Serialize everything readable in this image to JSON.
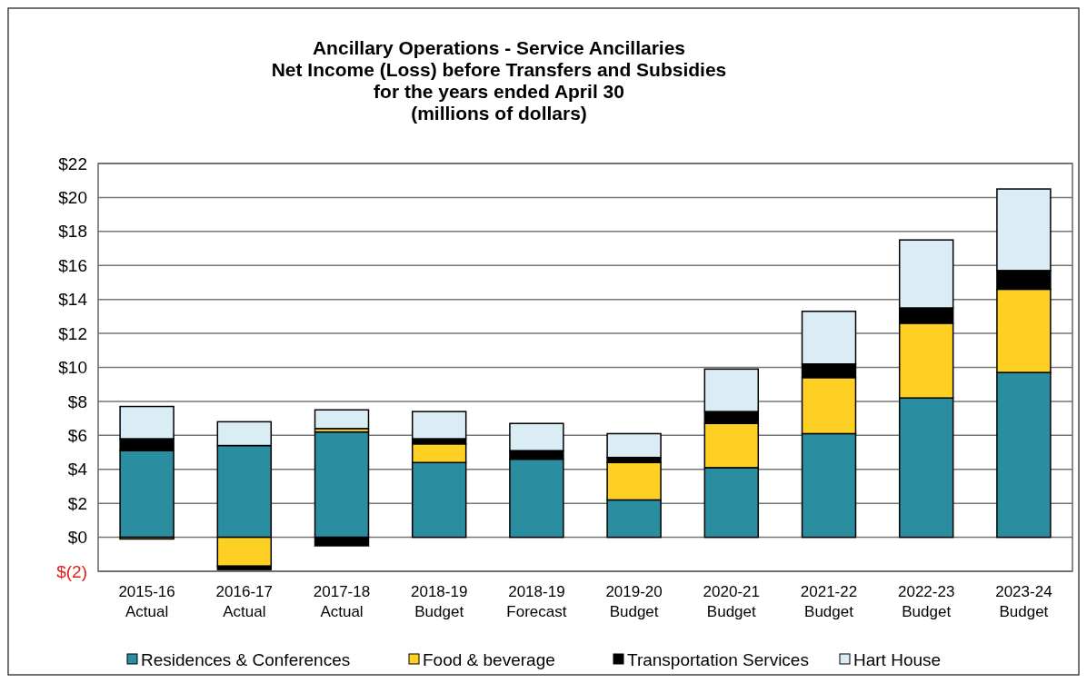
{
  "chart_data": {
    "type": "bar",
    "stacked": true,
    "title": "Ancillary Operations - Service Ancillaries\nNet Income (Loss) before Transfers and Subsidies\nfor the years ended April 30\n(millions of dollars)",
    "categories": [
      "2015-16\nActual",
      "2016-17\nActual",
      "2017-18\nActual",
      "2018-19\nBudget",
      "2018-19\nForecast",
      "2019-20\nBudget",
      "2020-21\nBudget",
      "2021-22\nBudget",
      "2022-23\nBudget",
      "2023-24\nBudget"
    ],
    "series": [
      {
        "name": "Residences & Conferences",
        "color": "#2a8ea0",
        "values": [
          5.1,
          5.4,
          6.2,
          4.4,
          4.6,
          2.2,
          4.1,
          6.1,
          8.2,
          9.7
        ]
      },
      {
        "name": "Food & beverage",
        "color": "#fdd023",
        "values": [
          -0.1,
          -1.7,
          0.2,
          1.1,
          null,
          2.2,
          2.6,
          3.3,
          4.4,
          4.9
        ]
      },
      {
        "name": "Transportation Services",
        "color": "#000000",
        "values": [
          0.7,
          -0.2,
          -0.5,
          0.3,
          0.5,
          0.3,
          0.7,
          0.8,
          0.9,
          1.1
        ]
      },
      {
        "name": "Hart House",
        "color": "#daedf4",
        "values": [
          1.9,
          1.4,
          1.1,
          1.6,
          1.6,
          1.4,
          2.5,
          3.1,
          4.0,
          4.8
        ]
      }
    ],
    "ylim": [
      -2,
      22
    ],
    "yticks": [
      {
        "value": -2,
        "label": "$(2)"
      },
      {
        "value": 0,
        "label": "$0"
      },
      {
        "value": 2,
        "label": "$2"
      },
      {
        "value": 4,
        "label": "$4"
      },
      {
        "value": 6,
        "label": "$6"
      },
      {
        "value": 8,
        "label": "$8"
      },
      {
        "value": 10,
        "label": "$10"
      },
      {
        "value": 12,
        "label": "$12"
      },
      {
        "value": 14,
        "label": "$14"
      },
      {
        "value": 16,
        "label": "$16"
      },
      {
        "value": 18,
        "label": "$18"
      },
      {
        "value": 20,
        "label": "$20"
      },
      {
        "value": 22,
        "label": "$22"
      }
    ],
    "grid": "y",
    "legend": "bottom"
  }
}
